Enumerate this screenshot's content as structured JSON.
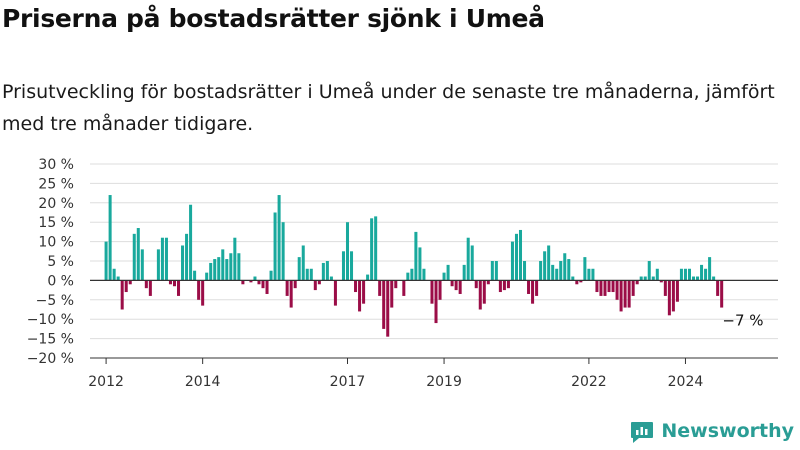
{
  "title": "Priserna på bostadsrätter sjönk i Umeå",
  "subtitle": "Prisutveckling för bostadsrätter i Umeå under de senaste tre månaderna, jämfört med tre månader tidigare.",
  "brand": {
    "name": "Newsworthy",
    "logo_icon": "newsworthy-logo-icon"
  },
  "colors": {
    "positive": "#19a99d",
    "negative": "#9b0d47",
    "grid": "#dddddd",
    "zero_line": "#333333",
    "brand": "#2a9d95"
  },
  "chart_data": {
    "type": "bar",
    "title": "Priserna på bostadsrätter sjönk i Umeå",
    "subtitle": "Prisutveckling för bostadsrätter i Umeå under de senaste tre månaderna, jämfört med tre månader tidigare.",
    "xlabel": "",
    "ylabel": "",
    "unit": "%",
    "ylim": [
      -20,
      30
    ],
    "y_ticks": [
      30,
      25,
      20,
      15,
      10,
      5,
      0,
      -5,
      -10,
      -15,
      -20
    ],
    "y_tick_labels": [
      "30 %",
      "25 %",
      "20 %",
      "15 %",
      "10 %",
      "5 %",
      "0 %",
      "−5 %",
      "−10 %",
      "−15 %",
      "−20 %"
    ],
    "x_range": [
      "2011-09",
      "2025-12"
    ],
    "x_tick_labels": [
      {
        "label": "2012",
        "date": "2012-01"
      },
      {
        "label": "2014",
        "date": "2014-01"
      },
      {
        "label": "2017",
        "date": "2017-01"
      },
      {
        "label": "2019",
        "date": "2019-01"
      },
      {
        "label": "2022",
        "date": "2022-01"
      },
      {
        "label": "2024",
        "date": "2024-01"
      }
    ],
    "grid": true,
    "legend": "none",
    "start_month": "2012-01",
    "frequency": "monthly",
    "values": [
      10,
      22,
      3,
      1,
      -7.5,
      -3,
      -1,
      12,
      13.5,
      8,
      -2,
      -4,
      0,
      8,
      11,
      11,
      -1,
      -1.5,
      -4,
      9,
      12,
      19.5,
      2.5,
      -5,
      -6.5,
      2,
      4.5,
      5.5,
      6,
      8,
      5.5,
      7,
      11,
      7,
      -1,
      0,
      -0.5,
      1,
      -1,
      -2,
      -3.5,
      2.5,
      17.5,
      22,
      15,
      -4,
      -7,
      -2,
      6,
      9,
      3,
      3,
      -2.5,
      -1,
      4.5,
      5,
      1,
      -6.5,
      0,
      7.5,
      15,
      7.5,
      -3,
      -8,
      -6,
      1.5,
      16,
      16.5,
      -4,
      -12.5,
      -14.5,
      -7,
      -2,
      0,
      -4,
      2,
      3,
      12.5,
      8.5,
      3,
      0,
      -6,
      -11,
      -5,
      2,
      4,
      -1.5,
      -2.5,
      -3.5,
      4,
      11,
      9,
      -2,
      -7.5,
      -6,
      -1,
      5,
      5,
      -3,
      -2.5,
      -2,
      10,
      12,
      13,
      5,
      -3.5,
      -6,
      -4,
      5,
      7.5,
      9,
      4,
      3,
      5,
      7,
      5.5,
      1,
      -1,
      -0.5,
      6,
      3,
      3,
      -3,
      -4,
      -4,
      -3,
      -3,
      -5,
      -8,
      -7,
      -7,
      -4,
      -1,
      1,
      1,
      5,
      1,
      3,
      -0.5,
      -4,
      -9,
      -8,
      -5.5,
      3,
      3,
      3,
      1,
      1,
      4,
      3,
      6,
      1,
      -4,
      -7
    ]
  }
}
